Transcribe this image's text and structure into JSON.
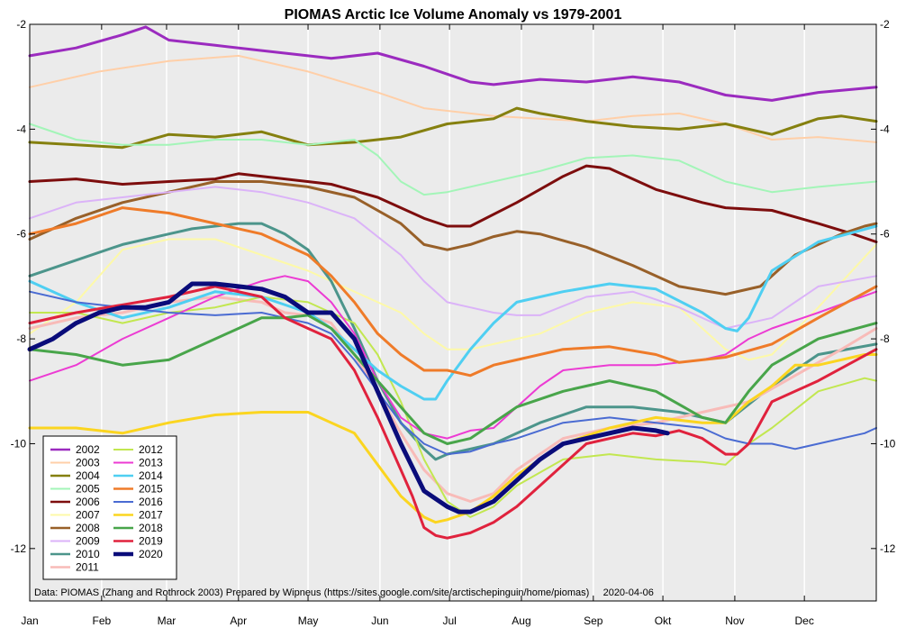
{
  "chart_data": {
    "type": "line",
    "title": "PIOMAS Arctic Ice Volume Anomaly vs 1979-2001",
    "xlabel": "",
    "ylabel": "",
    "ylim": [
      -13,
      -2
    ],
    "y_ticks": [
      -2,
      -4,
      -6,
      -8,
      -10,
      -12
    ],
    "y_tick_labels": [
      "-2",
      "-4",
      "-6",
      "-8",
      "-10",
      "-12"
    ],
    "x_range": [
      0,
      365
    ],
    "x_ticks": [
      0,
      31,
      59,
      90,
      120,
      151,
      181,
      212,
      243,
      273,
      304,
      334
    ],
    "x_tick_labels": [
      "Jan",
      "Feb",
      "Mar",
      "Apr",
      "May",
      "Jun",
      "Jul",
      "Aug",
      "Sep",
      "Okt",
      "Nov",
      "Dec"
    ],
    "grid": true,
    "legend_position": "bottom-left",
    "annotation": "Data: PIOMAS (Zhang and Rothrock 2003) Prepared by Wipneus (https://sites.google.com/site/arctischepinguin/home/piomas)     2020-04-06",
    "series": [
      {
        "name": "2002",
        "color": "#9b2bbf",
        "width": 3,
        "x": [
          0,
          20,
          40,
          50,
          60,
          80,
          100,
          130,
          150,
          170,
          190,
          200,
          220,
          240,
          260,
          280,
          300,
          310,
          320,
          340,
          365
        ],
        "values": [
          -2.6,
          -2.45,
          -2.2,
          -2.05,
          -2.3,
          -2.4,
          -2.5,
          -2.65,
          -2.55,
          -2.8,
          -3.1,
          -3.15,
          -3.05,
          -3.1,
          -3.0,
          -3.1,
          -3.35,
          -3.4,
          -3.45,
          -3.3,
          -3.2
        ]
      },
      {
        "name": "2003",
        "color": "#ffcfa8",
        "width": 2,
        "x": [
          0,
          30,
          60,
          90,
          120,
          150,
          170,
          190,
          200,
          220,
          240,
          260,
          280,
          300,
          320,
          340,
          365
        ],
        "values": [
          -3.2,
          -2.9,
          -2.7,
          -2.6,
          -2.9,
          -3.3,
          -3.6,
          -3.7,
          -3.75,
          -3.8,
          -3.85,
          -3.75,
          -3.7,
          -3.9,
          -4.2,
          -4.15,
          -4.25
        ]
      },
      {
        "name": "2004",
        "color": "#85800f",
        "width": 3,
        "x": [
          0,
          20,
          40,
          60,
          80,
          100,
          120,
          140,
          160,
          180,
          200,
          210,
          220,
          240,
          260,
          280,
          300,
          320,
          340,
          350,
          365
        ],
        "values": [
          -4.25,
          -4.3,
          -4.35,
          -4.1,
          -4.15,
          -4.05,
          -4.3,
          -4.25,
          -4.15,
          -3.9,
          -3.8,
          -3.6,
          -3.7,
          -3.85,
          -3.95,
          -4.0,
          -3.9,
          -4.1,
          -3.8,
          -3.75,
          -3.85
        ]
      },
      {
        "name": "2005",
        "color": "#a3f5b8",
        "width": 2,
        "x": [
          0,
          20,
          40,
          60,
          80,
          100,
          120,
          140,
          150,
          160,
          170,
          180,
          200,
          220,
          240,
          260,
          280,
          300,
          320,
          340,
          365
        ],
        "values": [
          -3.9,
          -4.2,
          -4.3,
          -4.3,
          -4.2,
          -4.2,
          -4.3,
          -4.2,
          -4.5,
          -5.0,
          -5.25,
          -5.2,
          -5.0,
          -4.8,
          -4.55,
          -4.5,
          -4.6,
          -5.0,
          -5.2,
          -5.1,
          -5.0
        ]
      },
      {
        "name": "2006",
        "color": "#7d0d0d",
        "width": 3,
        "x": [
          0,
          20,
          40,
          60,
          80,
          90,
          110,
          130,
          150,
          170,
          180,
          190,
          210,
          230,
          240,
          250,
          270,
          290,
          300,
          320,
          340,
          355,
          365
        ],
        "values": [
          -5.0,
          -4.95,
          -5.05,
          -5.0,
          -4.95,
          -4.85,
          -4.95,
          -5.05,
          -5.3,
          -5.7,
          -5.85,
          -5.85,
          -5.4,
          -4.9,
          -4.7,
          -4.75,
          -5.15,
          -5.4,
          -5.5,
          -5.55,
          -5.8,
          -6.0,
          -6.15
        ]
      },
      {
        "name": "2007",
        "color": "#fdf9a8",
        "width": 2,
        "x": [
          0,
          20,
          40,
          60,
          80,
          100,
          120,
          140,
          160,
          170,
          180,
          190,
          200,
          220,
          240,
          260,
          280,
          300,
          310,
          320,
          340,
          365
        ],
        "values": [
          -7.9,
          -7.3,
          -6.3,
          -6.1,
          -6.1,
          -6.4,
          -6.7,
          -7.1,
          -7.5,
          -7.9,
          -8.2,
          -8.2,
          -8.1,
          -7.9,
          -7.5,
          -7.3,
          -7.4,
          -8.2,
          -8.4,
          -8.3,
          -7.4,
          -6.2
        ]
      },
      {
        "name": "2008",
        "color": "#986029",
        "width": 3,
        "x": [
          0,
          20,
          40,
          60,
          80,
          100,
          120,
          140,
          160,
          170,
          180,
          190,
          200,
          210,
          220,
          240,
          260,
          280,
          300,
          315,
          330,
          340,
          350,
          360,
          365
        ],
        "values": [
          -6.1,
          -5.7,
          -5.4,
          -5.2,
          -5.0,
          -5.0,
          -5.1,
          -5.3,
          -5.8,
          -6.2,
          -6.3,
          -6.2,
          -6.05,
          -5.95,
          -6.0,
          -6.25,
          -6.6,
          -7.0,
          -7.15,
          -7.0,
          -6.4,
          -6.2,
          -6.0,
          -5.85,
          -5.8
        ]
      },
      {
        "name": "2009",
        "color": "#dbb3f8",
        "width": 2,
        "x": [
          0,
          20,
          40,
          60,
          80,
          100,
          120,
          140,
          160,
          170,
          180,
          190,
          200,
          210,
          220,
          240,
          260,
          280,
          300,
          320,
          340,
          365
        ],
        "values": [
          -5.7,
          -5.4,
          -5.3,
          -5.2,
          -5.1,
          -5.2,
          -5.4,
          -5.7,
          -6.4,
          -6.9,
          -7.3,
          -7.4,
          -7.5,
          -7.55,
          -7.55,
          -7.2,
          -7.1,
          -7.4,
          -7.8,
          -7.6,
          -7.0,
          -6.8
        ]
      },
      {
        "name": "2010",
        "color": "#4c958b",
        "width": 3,
        "x": [
          0,
          20,
          40,
          60,
          70,
          80,
          90,
          100,
          110,
          120,
          130,
          140,
          150,
          160,
          170,
          175,
          180,
          190,
          200,
          220,
          240,
          260,
          280,
          300,
          320,
          340,
          365
        ],
        "values": [
          -6.8,
          -6.5,
          -6.2,
          -6.0,
          -5.9,
          -5.85,
          -5.8,
          -5.8,
          -6.0,
          -6.3,
          -6.9,
          -7.8,
          -8.8,
          -9.6,
          -10.1,
          -10.3,
          -10.2,
          -10.1,
          -10.0,
          -9.6,
          -9.3,
          -9.3,
          -9.4,
          -9.6,
          -8.9,
          -8.3,
          -8.1
        ]
      },
      {
        "name": "2011",
        "color": "#f8bbb8",
        "width": 3,
        "x": [
          0,
          20,
          40,
          60,
          80,
          100,
          110,
          120,
          130,
          140,
          150,
          160,
          170,
          180,
          190,
          200,
          210,
          230,
          250,
          270,
          290,
          310,
          330,
          350,
          365
        ],
        "values": [
          -7.8,
          -7.6,
          -7.5,
          -7.3,
          -7.2,
          -7.3,
          -7.5,
          -7.55,
          -7.7,
          -8.3,
          -9.0,
          -9.8,
          -10.5,
          -10.95,
          -11.1,
          -10.95,
          -10.5,
          -9.9,
          -9.7,
          -9.6,
          -9.4,
          -9.2,
          -8.7,
          -8.2,
          -7.8
        ]
      },
      {
        "name": "2012",
        "color": "#c2e750",
        "width": 2,
        "x": [
          0,
          20,
          40,
          60,
          80,
          100,
          120,
          140,
          150,
          160,
          170,
          180,
          190,
          200,
          210,
          230,
          250,
          270,
          290,
          300,
          310,
          320,
          340,
          360,
          365
        ],
        "values": [
          -7.5,
          -7.5,
          -7.7,
          -7.5,
          -7.4,
          -7.2,
          -7.3,
          -7.7,
          -8.3,
          -9.2,
          -10.3,
          -11.1,
          -11.4,
          -11.2,
          -10.8,
          -10.3,
          -10.2,
          -10.3,
          -10.35,
          -10.4,
          -10.0,
          -9.7,
          -9.0,
          -8.75,
          -8.8
        ]
      },
      {
        "name": "2013",
        "color": "#ec3bd3",
        "width": 2,
        "x": [
          0,
          20,
          40,
          60,
          80,
          100,
          110,
          120,
          130,
          140,
          150,
          160,
          170,
          180,
          190,
          200,
          210,
          220,
          230,
          250,
          270,
          290,
          300,
          310,
          320,
          340,
          365
        ],
        "values": [
          -8.8,
          -8.5,
          -8.0,
          -7.6,
          -7.2,
          -6.9,
          -6.8,
          -6.9,
          -7.3,
          -7.9,
          -8.8,
          -9.5,
          -9.8,
          -9.9,
          -9.75,
          -9.7,
          -9.3,
          -8.9,
          -8.6,
          -8.5,
          -8.5,
          -8.4,
          -8.3,
          -8.0,
          -7.8,
          -7.5,
          -7.1
        ]
      },
      {
        "name": "2014",
        "color": "#4fcff2",
        "width": 3,
        "x": [
          0,
          20,
          40,
          60,
          80,
          100,
          120,
          130,
          140,
          150,
          160,
          170,
          175,
          180,
          190,
          200,
          210,
          230,
          250,
          270,
          290,
          300,
          305,
          310,
          320,
          340,
          365
        ],
        "values": [
          -6.9,
          -7.3,
          -7.6,
          -7.4,
          -7.1,
          -7.2,
          -7.5,
          -7.8,
          -8.2,
          -8.6,
          -8.9,
          -9.15,
          -9.15,
          -8.8,
          -8.2,
          -7.7,
          -7.3,
          -7.1,
          -6.95,
          -7.05,
          -7.5,
          -7.8,
          -7.85,
          -7.6,
          -6.7,
          -6.15,
          -5.85
        ]
      },
      {
        "name": "2015",
        "color": "#ef7b29",
        "width": 3,
        "x": [
          0,
          20,
          40,
          60,
          80,
          100,
          120,
          130,
          140,
          150,
          160,
          170,
          180,
          190,
          200,
          210,
          230,
          250,
          270,
          280,
          290,
          300,
          320,
          340,
          365
        ],
        "values": [
          -6.0,
          -5.8,
          -5.5,
          -5.6,
          -5.8,
          -6.0,
          -6.4,
          -6.8,
          -7.3,
          -7.9,
          -8.3,
          -8.6,
          -8.6,
          -8.7,
          -8.5,
          -8.4,
          -8.2,
          -8.15,
          -8.3,
          -8.45,
          -8.4,
          -8.35,
          -8.1,
          -7.6,
          -7.0
        ]
      },
      {
        "name": "2016",
        "color": "#4a6bd2",
        "width": 2,
        "x": [
          0,
          20,
          40,
          60,
          80,
          100,
          110,
          120,
          130,
          140,
          150,
          160,
          170,
          180,
          190,
          200,
          210,
          230,
          250,
          270,
          290,
          300,
          310,
          320,
          330,
          340,
          360,
          365
        ],
        "values": [
          -7.1,
          -7.3,
          -7.4,
          -7.5,
          -7.55,
          -7.5,
          -7.6,
          -7.7,
          -7.9,
          -8.4,
          -9.0,
          -9.6,
          -10.0,
          -10.2,
          -10.15,
          -10.0,
          -9.9,
          -9.6,
          -9.5,
          -9.6,
          -9.7,
          -9.9,
          -10.0,
          -10.0,
          -10.1,
          -10.0,
          -9.8,
          -9.7
        ]
      },
      {
        "name": "2017",
        "color": "#fbd520",
        "width": 3,
        "x": [
          0,
          20,
          40,
          60,
          80,
          100,
          120,
          140,
          150,
          160,
          170,
          175,
          180,
          190,
          200,
          210,
          230,
          250,
          270,
          290,
          300,
          310,
          320,
          330,
          340,
          360,
          365
        ],
        "values": [
          -9.7,
          -9.7,
          -9.8,
          -9.6,
          -9.45,
          -9.4,
          -9.4,
          -9.8,
          -10.4,
          -11.0,
          -11.4,
          -11.5,
          -11.45,
          -11.3,
          -11.0,
          -10.6,
          -10.0,
          -9.7,
          -9.5,
          -9.6,
          -9.6,
          -9.2,
          -8.9,
          -8.5,
          -8.5,
          -8.3,
          -8.3
        ]
      },
      {
        "name": "2018",
        "color": "#48a54a",
        "width": 3,
        "x": [
          0,
          20,
          40,
          60,
          80,
          90,
          100,
          110,
          120,
          130,
          140,
          150,
          160,
          170,
          180,
          190,
          210,
          230,
          250,
          270,
          290,
          300,
          310,
          320,
          340,
          365
        ],
        "values": [
          -8.2,
          -8.3,
          -8.5,
          -8.4,
          -8.0,
          -7.8,
          -7.6,
          -7.6,
          -7.55,
          -7.8,
          -8.3,
          -8.8,
          -9.3,
          -9.8,
          -10.0,
          -9.9,
          -9.3,
          -9.0,
          -8.8,
          -9.0,
          -9.5,
          -9.6,
          -9.0,
          -8.5,
          -8.0,
          -7.7
        ]
      },
      {
        "name": "2019",
        "color": "#e0223d",
        "width": 3,
        "x": [
          0,
          20,
          40,
          60,
          80,
          100,
          110,
          120,
          130,
          140,
          150,
          160,
          165,
          170,
          175,
          180,
          190,
          200,
          210,
          220,
          240,
          260,
          270,
          280,
          290,
          300,
          305,
          310,
          320,
          340,
          365
        ],
        "values": [
          -7.7,
          -7.5,
          -7.35,
          -7.2,
          -7.0,
          -7.2,
          -7.6,
          -7.8,
          -8.0,
          -8.6,
          -9.5,
          -10.5,
          -11.0,
          -11.6,
          -11.75,
          -11.8,
          -11.7,
          -11.5,
          -11.2,
          -10.8,
          -10.0,
          -9.8,
          -9.85,
          -9.75,
          -9.9,
          -10.2,
          -10.2,
          -10.0,
          -9.2,
          -8.8,
          -8.2
        ]
      },
      {
        "name": "2020",
        "color": "#0a0c7a",
        "width": 5,
        "x": [
          0,
          10,
          20,
          30,
          40,
          50,
          60,
          70,
          80,
          90,
          100,
          110,
          120,
          130,
          140,
          150,
          160,
          170,
          180,
          185,
          190,
          200,
          210,
          220,
          230,
          240,
          250,
          260,
          270,
          275
        ],
        "values": [
          -8.2,
          -8.0,
          -7.7,
          -7.5,
          -7.4,
          -7.4,
          -7.3,
          -6.95,
          -6.95,
          -7.0,
          -7.05,
          -7.2,
          -7.5,
          -7.5,
          -8.0,
          -9.0,
          -10.0,
          -10.9,
          -11.2,
          -11.3,
          -11.3,
          -11.1,
          -10.7,
          -10.3,
          -10.0,
          -9.9,
          -9.8,
          -9.7,
          -9.75,
          -9.8
        ]
      }
    ]
  }
}
